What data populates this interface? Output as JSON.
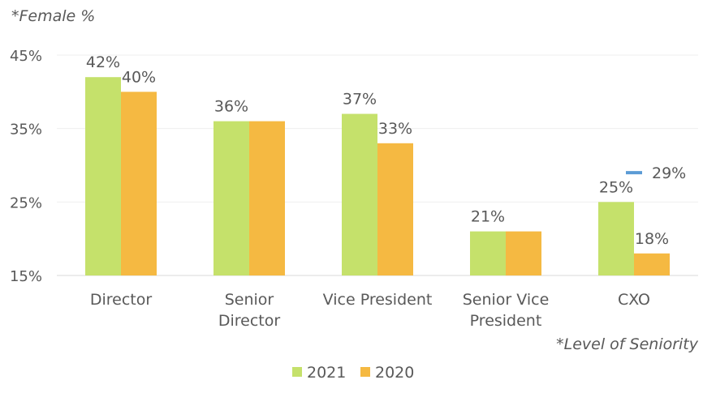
{
  "chart_data": {
    "type": "bar",
    "ylabel": "*Female %",
    "xlabel": "*Level of Seniority",
    "categories": [
      [
        "Director"
      ],
      [
        "Senior",
        "Director"
      ],
      [
        "Vice President"
      ],
      [
        "Senior Vice",
        "President"
      ],
      [
        "CXO"
      ]
    ],
    "series": [
      {
        "name": "2021",
        "values": [
          42,
          36,
          37,
          21,
          25
        ],
        "labels": [
          "42%",
          "36%",
          "37%",
          "21%",
          "25%"
        ],
        "color": "#c5e16b"
      },
      {
        "name": "2020",
        "values": [
          40,
          36,
          33,
          21,
          18
        ],
        "labels": [
          "40%",
          "",
          "33%",
          "",
          "18%"
        ],
        "color": "#f5b942"
      }
    ],
    "extra_marker": {
      "category_index": 4,
      "value": 29,
      "label": "29%",
      "color": "#5b9bd5"
    },
    "ylim": [
      15,
      45
    ],
    "yticks": [
      15,
      25,
      35,
      45
    ],
    "ytick_labels": [
      "15%",
      "25%",
      "35%",
      "45%"
    ],
    "grid": true,
    "legend": "bottom"
  }
}
